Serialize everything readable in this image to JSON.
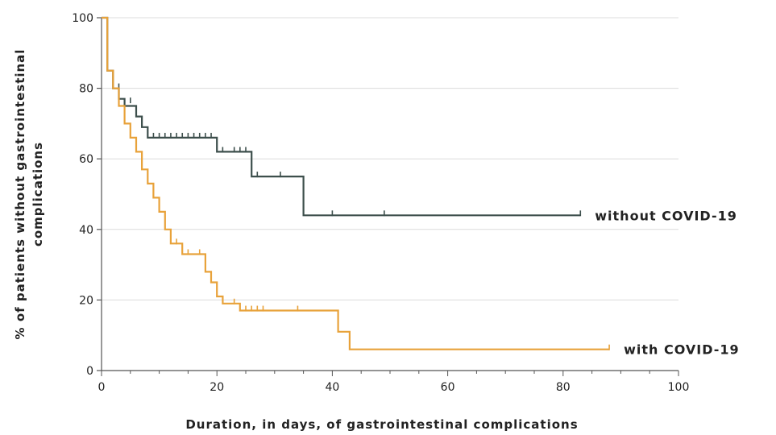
{
  "chart_data": {
    "type": "line",
    "title": "",
    "xlabel": "Duration, in days, of gastrointestinal complications",
    "ylabel_lines": [
      "% of patients without gastrointestinal",
      "complications"
    ],
    "xlim": [
      0,
      100
    ],
    "ylim": [
      0,
      100
    ],
    "x_ticks": [
      "0",
      "20",
      "40",
      "60",
      "80",
      "100"
    ],
    "y_ticks": [
      "0",
      "20",
      "40",
      "60",
      "80",
      "100"
    ],
    "grid": "horizontal",
    "legend": "inline-right",
    "series": [
      {
        "name": "without COVID-19",
        "color": "#3d4f4c",
        "step": [
          [
            0,
            100
          ],
          [
            1,
            100
          ],
          [
            1,
            85
          ],
          [
            2,
            85
          ],
          [
            2,
            80
          ],
          [
            3,
            80
          ],
          [
            3,
            77
          ],
          [
            4,
            77
          ],
          [
            4,
            75
          ],
          [
            6,
            75
          ],
          [
            6,
            72
          ],
          [
            7,
            72
          ],
          [
            7,
            69
          ],
          [
            8,
            69
          ],
          [
            8,
            66
          ],
          [
            20,
            66
          ],
          [
            20,
            62
          ],
          [
            26,
            62
          ],
          [
            26,
            55
          ],
          [
            35,
            55
          ],
          [
            35,
            44
          ],
          [
            83,
            44
          ]
        ],
        "censored": [
          [
            3,
            80
          ],
          [
            5,
            76
          ],
          [
            6,
            73
          ],
          [
            9,
            66
          ],
          [
            10,
            66
          ],
          [
            11,
            66
          ],
          [
            12,
            66
          ],
          [
            13,
            66
          ],
          [
            14,
            66
          ],
          [
            15,
            66
          ],
          [
            16,
            66
          ],
          [
            17,
            66
          ],
          [
            18,
            66
          ],
          [
            19,
            66
          ],
          [
            21,
            62
          ],
          [
            23,
            62
          ],
          [
            24,
            62
          ],
          [
            25,
            62
          ],
          [
            27,
            55
          ],
          [
            31,
            55
          ],
          [
            40,
            44
          ],
          [
            49,
            44
          ],
          [
            83,
            44
          ]
        ]
      },
      {
        "name": "with COVID-19",
        "color": "#e8a23a",
        "step": [
          [
            0,
            100
          ],
          [
            1,
            100
          ],
          [
            1,
            85
          ],
          [
            2,
            85
          ],
          [
            2,
            80
          ],
          [
            3,
            80
          ],
          [
            3,
            75
          ],
          [
            4,
            75
          ],
          [
            4,
            70
          ],
          [
            5,
            70
          ],
          [
            5,
            66
          ],
          [
            6,
            66
          ],
          [
            6,
            62
          ],
          [
            7,
            62
          ],
          [
            7,
            57
          ],
          [
            8,
            57
          ],
          [
            8,
            53
          ],
          [
            9,
            53
          ],
          [
            9,
            49
          ],
          [
            10,
            49
          ],
          [
            10,
            45
          ],
          [
            11,
            45
          ],
          [
            11,
            40
          ],
          [
            12,
            40
          ],
          [
            12,
            36
          ],
          [
            14,
            36
          ],
          [
            14,
            33
          ],
          [
            18,
            33
          ],
          [
            18,
            28
          ],
          [
            19,
            28
          ],
          [
            19,
            25
          ],
          [
            20,
            25
          ],
          [
            20,
            21
          ],
          [
            21,
            21
          ],
          [
            21,
            19
          ],
          [
            24,
            19
          ],
          [
            24,
            17
          ],
          [
            41,
            17
          ],
          [
            41,
            11
          ],
          [
            43,
            11
          ],
          [
            43,
            6
          ],
          [
            88,
            6
          ]
        ],
        "censored": [
          [
            13,
            36
          ],
          [
            15,
            33
          ],
          [
            17,
            33
          ],
          [
            23,
            19
          ],
          [
            25,
            17
          ],
          [
            26,
            17
          ],
          [
            27,
            17
          ],
          [
            28,
            17
          ],
          [
            34,
            17
          ],
          [
            88,
            6
          ]
        ]
      }
    ]
  }
}
